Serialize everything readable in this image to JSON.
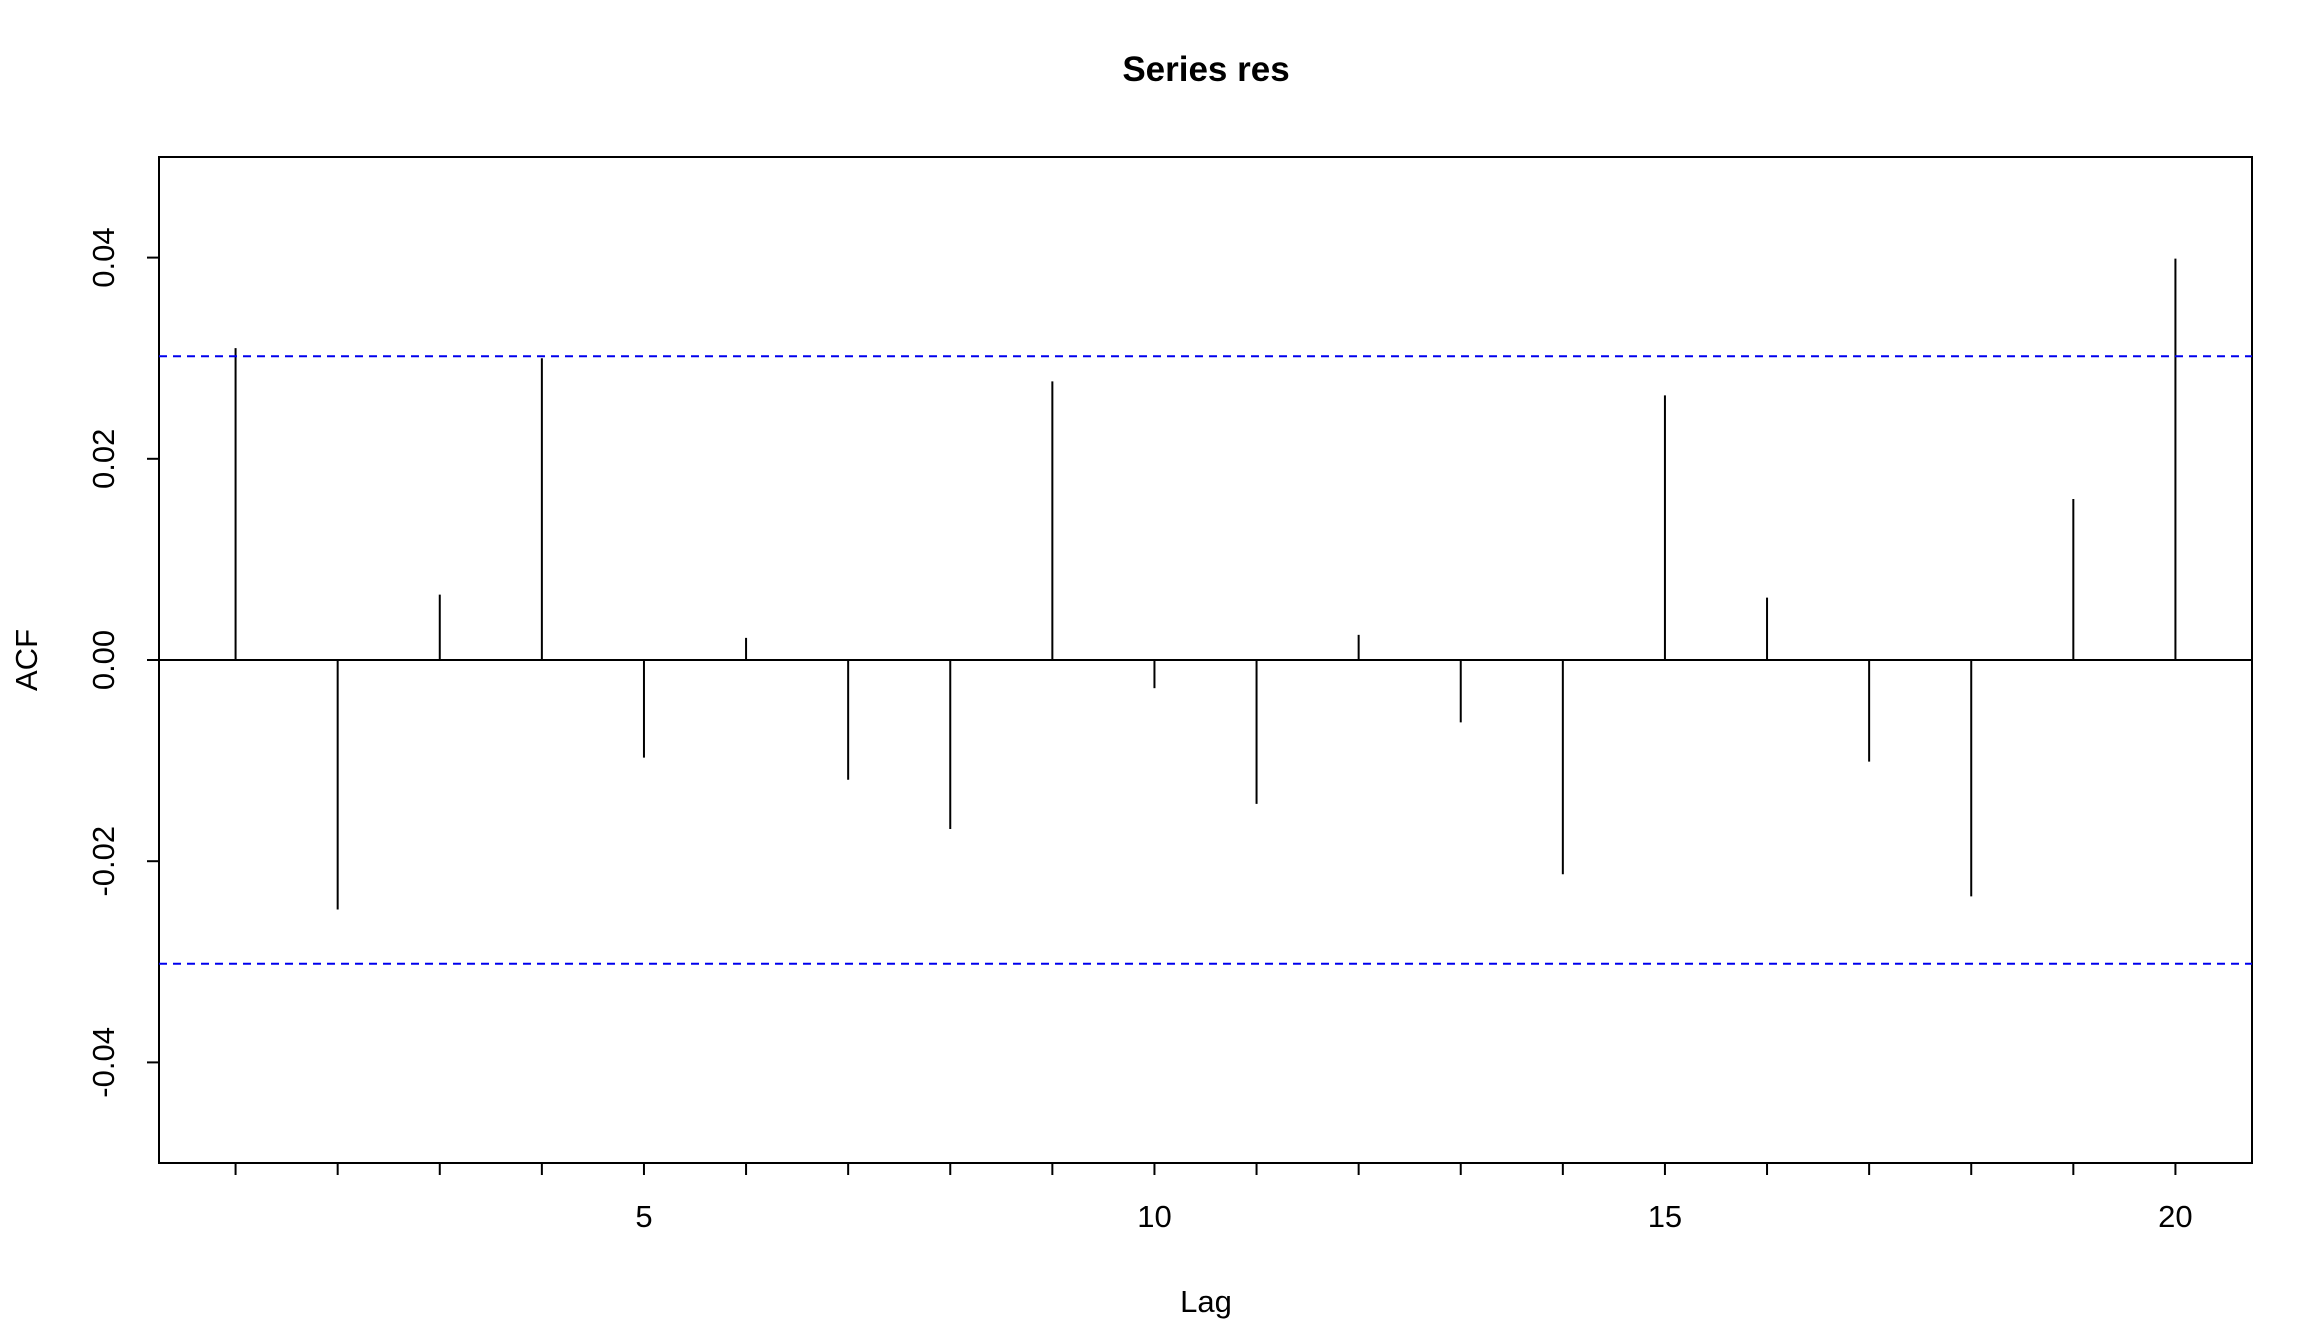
{
  "chart_data": {
    "type": "bar",
    "title": "Series  res",
    "xlabel": "Lag",
    "ylabel": "ACF",
    "xlim": [
      0.25,
      20.75
    ],
    "ylim": [
      -0.05,
      0.05
    ],
    "x_ticks": [
      5,
      10,
      15,
      20
    ],
    "x_tick_labels": [
      "5",
      "10",
      "15",
      "20"
    ],
    "x_minor_ticks": [
      1,
      2,
      3,
      4,
      6,
      7,
      8,
      9,
      11,
      12,
      13,
      14,
      16,
      17,
      18,
      19
    ],
    "y_ticks": [
      -0.04,
      -0.02,
      0.0,
      0.02,
      0.04
    ],
    "y_tick_labels": [
      "-0.04",
      "-0.02",
      "0.00",
      "0.02",
      "0.04"
    ],
    "lags": [
      1,
      2,
      3,
      4,
      5,
      6,
      7,
      8,
      9,
      10,
      11,
      12,
      13,
      14,
      15,
      16,
      17,
      18,
      19,
      20
    ],
    "values": [
      0.031,
      -0.0248,
      0.0065,
      0.03,
      -0.0097,
      0.0022,
      -0.0119,
      -0.0168,
      0.0277,
      -0.0028,
      -0.0143,
      0.0025,
      -0.0062,
      -0.0213,
      0.0263,
      0.0062,
      -0.0101,
      -0.0235,
      0.016,
      0.0399
    ],
    "confidence_band": [
      -0.0302,
      0.0302
    ],
    "grid": false,
    "colors": {
      "bars": "#000000",
      "zero_line": "#000000",
      "ci_lines": "#0000ee"
    }
  }
}
